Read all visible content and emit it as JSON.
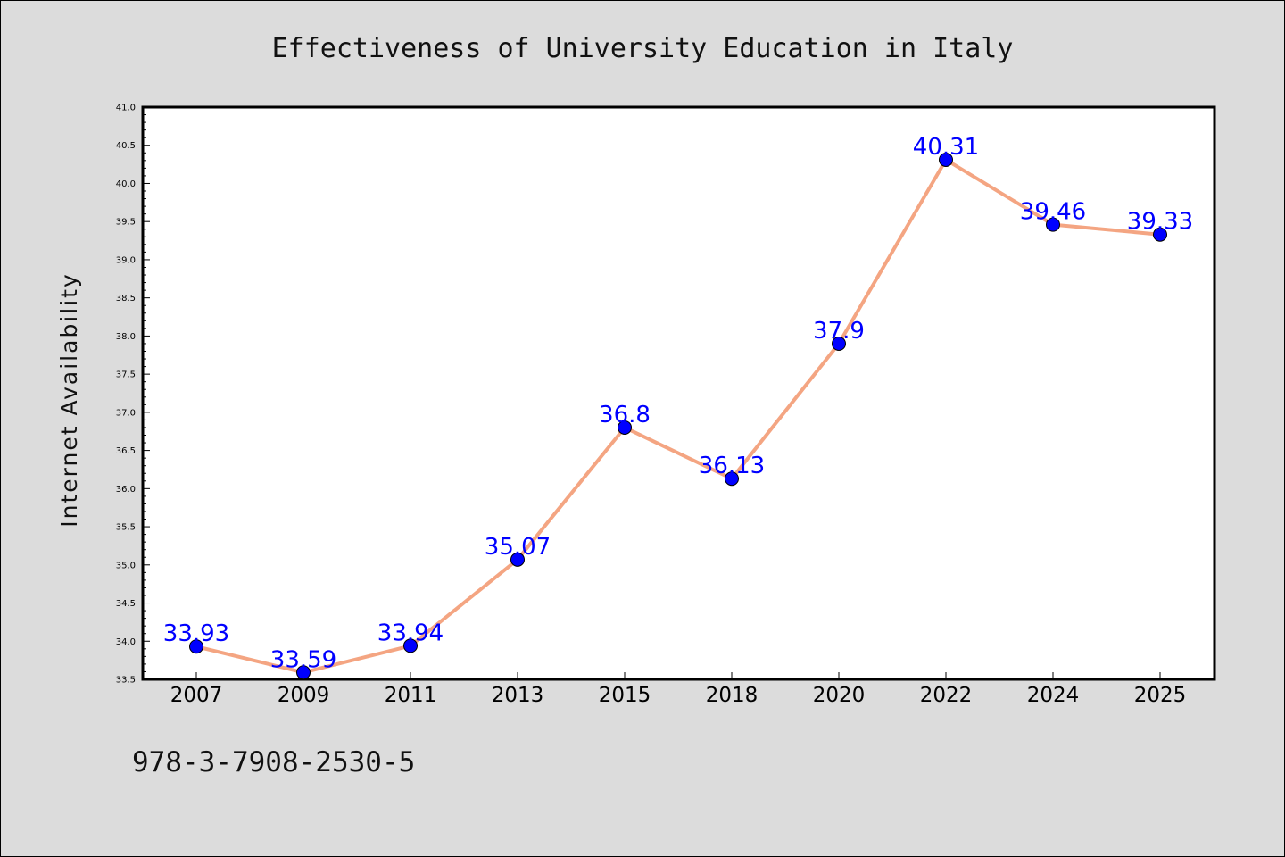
{
  "chart_data": {
    "type": "line",
    "title": "Effectiveness of University Education in Italy",
    "xlabel": "",
    "ylabel": "Internet Availability",
    "categories": [
      "2007",
      "2009",
      "2011",
      "2013",
      "2015",
      "2018",
      "2020",
      "2022",
      "2024",
      "2025"
    ],
    "series": [
      {
        "values": [
          33.93,
          33.59,
          33.94,
          35.07,
          36.8,
          36.13,
          37.9,
          40.31,
          39.46,
          39.33
        ],
        "labels": [
          "33.93",
          "33.59",
          "33.94",
          "35.07",
          "36.8",
          "36.13",
          "37.9",
          "40.31",
          "39.46",
          "39.33"
        ]
      }
    ],
    "ylim": [
      33.5,
      41.0
    ],
    "yticks": [
      "33.5",
      "34.0",
      "34.5",
      "35.0",
      "35.5",
      "36.0",
      "36.5",
      "37.0",
      "37.5",
      "38.0",
      "38.5",
      "39.0",
      "39.5",
      "40.0",
      "40.5",
      "41.0"
    ],
    "grid": false,
    "line_color": "#f4a582",
    "marker_color": "#0000ff",
    "label_color": "#0000ff",
    "background_color": "#dcdcdc",
    "plot_background": "#ffffff"
  },
  "footer": {
    "isbn": "978-3-7908-2530-5"
  }
}
